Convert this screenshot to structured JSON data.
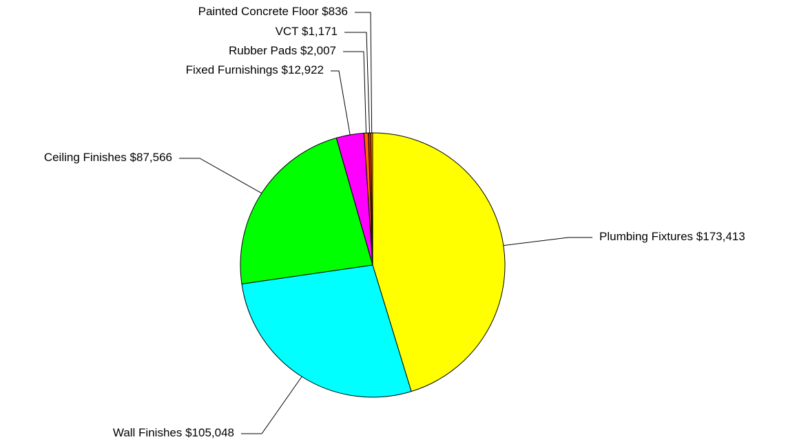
{
  "chart_data": {
    "type": "pie",
    "categories": [
      "Plumbing Fixtures",
      "Wall Finishes",
      "Ceiling Finishes",
      "Fixed Furnishings",
      "Rubber Pads",
      "VCT",
      "Painted Concrete Floor"
    ],
    "values": [
      173413,
      105048,
      87566,
      12922,
      2007,
      1171,
      836
    ],
    "value_labels": [
      "$173,413",
      "$105,048",
      "$87,566",
      "$12,922",
      "$2,007",
      "$1,171",
      "$836"
    ],
    "colors": [
      "#ffff00",
      "#00ffff",
      "#00ff00",
      "#ff00ff",
      "#ff6600",
      "#cc3300",
      "#ff9900"
    ]
  }
}
